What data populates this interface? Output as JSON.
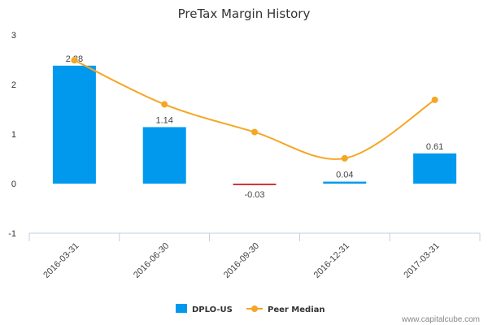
{
  "chart_data": {
    "type": "bar",
    "title": "PreTax Margin History",
    "categories": [
      "2016-03-31",
      "2016-06-30",
      "2016-09-30",
      "2016-12-31",
      "2017-03-31"
    ],
    "series": [
      {
        "name": "DPLO-US",
        "kind": "bar",
        "values": [
          2.38,
          1.14,
          -0.03,
          0.04,
          0.61
        ],
        "labels": [
          "2.38",
          "1.14",
          "-0.03",
          "0.04",
          "0.61"
        ],
        "color": "#0099ee",
        "negative_color": "#cc2222"
      },
      {
        "name": "Peer Median",
        "kind": "line",
        "values": [
          2.49,
          1.6,
          1.04,
          0.51,
          1.69
        ],
        "color": "#f5a623"
      }
    ],
    "y_ticks": [
      "3",
      "2",
      "1",
      "0",
      "-1"
    ],
    "ylim": [
      -1,
      3
    ],
    "grid": false,
    "legend": "bottom-center"
  },
  "credit": "www.capitalcube.com"
}
